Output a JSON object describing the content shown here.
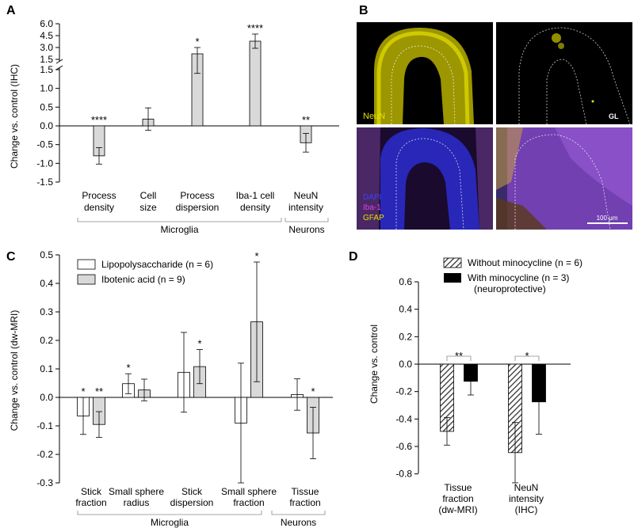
{
  "panels": {
    "A": {
      "letter": "A",
      "ylabel": "Change vs. control (IHC)",
      "upper_ticks": [
        "6.0",
        "4.5",
        "3.0",
        "1.5"
      ],
      "lower_ticks": [
        "1.5",
        "1.0",
        "0.5",
        "0.0",
        "-0.5",
        "-1.0",
        "-1.5"
      ],
      "x_labels": [
        [
          "Process",
          "density"
        ],
        [
          "Cell",
          "size"
        ],
        [
          "Process",
          "dispersion"
        ],
        [
          "Iba-1 cell",
          "density"
        ],
        [
          "NeuN",
          "intensity"
        ]
      ],
      "group_labels": [
        "Microglia",
        "Neurons"
      ]
    },
    "B": {
      "letter": "B",
      "label_neun": "NeuN",
      "label_gl": "GL",
      "label_dapi": "DAPI",
      "label_iba1": "Iba-1",
      "label_gfap": "GFAP",
      "scale_bar": "100 μm"
    },
    "C": {
      "letter": "C",
      "ylabel": "Change vs. control (dw-MRI)",
      "ticks": [
        "0.5",
        "0.4",
        "0.3",
        "0.2",
        "0.1",
        "0.0",
        "-0.1",
        "-0.2",
        "-0.3"
      ],
      "legend": [
        "Lipopolysaccharide (n = 6)",
        "Ibotenic acid (n = 9)"
      ],
      "x_labels": [
        [
          "Stick",
          "fraction"
        ],
        [
          "Small sphere",
          "radius"
        ],
        [
          "Stick",
          "dispersion"
        ],
        [
          "Small sphere",
          "fraction"
        ],
        [
          "Tissue",
          "fraction"
        ]
      ],
      "group_labels": [
        "Microglia",
        "Neurons"
      ]
    },
    "D": {
      "letter": "D",
      "ylabel": "Change vs. control",
      "ticks": [
        "0.6",
        "0.4",
        "0.2",
        "0.0",
        "-0.2",
        "-0.4",
        "-0.6",
        "-0.8"
      ],
      "legend": [
        "Without minocycline (n = 6)",
        "With minocycline (n = 3)",
        "(neuroprotective)"
      ],
      "x_labels": [
        [
          "Tissue",
          "fraction",
          "(dw-MRI)"
        ],
        [
          "NeuN",
          "intensity",
          "(IHC)"
        ]
      ]
    }
  },
  "colors": {
    "gray_bar": "#d9d9d9",
    "black_bar": "#000000",
    "micrograph_bg": "#000000",
    "neun_yellow": "#d8d200",
    "dapi_blue": "#2a2ac8",
    "iba1_magenta": "#e040e0"
  },
  "chart_data": [
    {
      "panel": "A",
      "type": "bar",
      "ylabel": "Change vs. control (IHC)",
      "y_axis": "broken",
      "ylim_lower": [
        -1.5,
        1.5
      ],
      "ylim_upper": [
        1.5,
        6.0
      ],
      "categories": [
        "Process density",
        "Cell size",
        "Process dispersion",
        "Iba-1 cell density",
        "NeuN intensity"
      ],
      "groups": [
        {
          "name": "Microglia",
          "categories": 4
        },
        {
          "name": "Neurons",
          "categories": 1
        }
      ],
      "values": [
        -0.8,
        0.18,
        2.2,
        3.8,
        -0.45
      ],
      "errors": [
        0.22,
        0.3,
        0.8,
        0.9,
        0.25
      ],
      "significance": [
        "****",
        "",
        "*",
        "****",
        "**"
      ]
    },
    {
      "panel": "C",
      "type": "bar",
      "ylabel": "Change vs. control (dw-MRI)",
      "ylim": [
        -0.3,
        0.5
      ],
      "categories": [
        "Stick fraction",
        "Small sphere radius",
        "Stick dispersion",
        "Small sphere fraction",
        "Tissue fraction"
      ],
      "groups": [
        {
          "name": "Microglia",
          "categories": 4
        },
        {
          "name": "Neurons",
          "categories": 1
        }
      ],
      "legend": "top-left",
      "series": [
        {
          "name": "Lipopolysaccharide (n = 6)",
          "color": "#ffffff",
          "values": [
            -0.065,
            0.048,
            0.088,
            -0.09,
            0.01
          ],
          "errors": [
            0.065,
            0.035,
            0.14,
            0.21,
            0.055
          ],
          "significance": [
            "*",
            "*",
            "",
            "",
            ""
          ]
        },
        {
          "name": "Ibotenic acid (n = 9)",
          "color": "#d9d9d9",
          "values": [
            -0.095,
            0.026,
            0.108,
            0.265,
            -0.125
          ],
          "errors": [
            0.045,
            0.038,
            0.06,
            0.21,
            0.09
          ],
          "significance": [
            "**",
            "",
            "*",
            "*",
            "*"
          ]
        }
      ]
    },
    {
      "panel": "D",
      "type": "bar",
      "ylabel": "Change vs. control",
      "ylim": [
        -0.8,
        0.6
      ],
      "categories": [
        "Tissue fraction (dw-MRI)",
        "NeuN intensity (IHC)"
      ],
      "legend": "top-right",
      "series": [
        {
          "name": "Without minocycline (n = 6)",
          "pattern": "hatched",
          "values": [
            -0.49,
            -0.645
          ],
          "errors": [
            0.1,
            0.22
          ]
        },
        {
          "name": "With minocycline (n = 3) (neuroprotective)",
          "color": "#000000",
          "values": [
            -0.125,
            -0.275
          ],
          "errors": [
            0.1,
            0.235
          ]
        }
      ],
      "comparisons": [
        "**",
        "*"
      ]
    }
  ]
}
